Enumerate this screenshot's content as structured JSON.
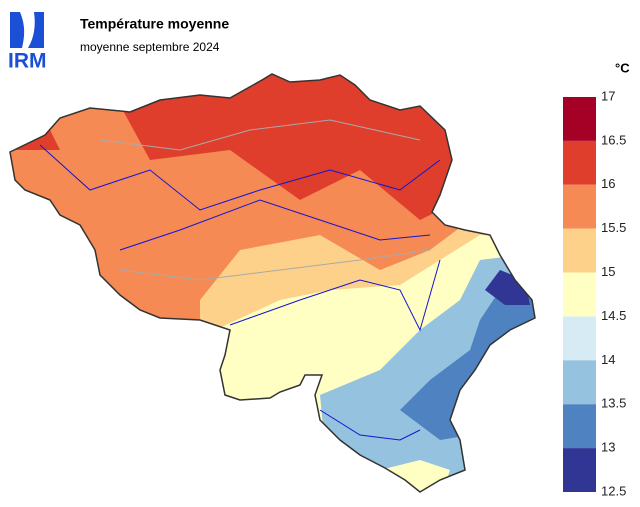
{
  "logo": "IRM",
  "header": {
    "title": "Température moyenne",
    "subtitle": "moyenne septembre 2024"
  },
  "legend": {
    "unit": "°C",
    "ticks": [
      17,
      16.5,
      16,
      15.5,
      15,
      14.5,
      14,
      13.5,
      13,
      12.5
    ],
    "colors": [
      "#a50026",
      "#de3e2b",
      "#f68a54",
      "#fdd18a",
      "#ffffc4",
      "#d6ebf3",
      "#94c2df",
      "#4f82c0",
      "#313695"
    ]
  }
}
